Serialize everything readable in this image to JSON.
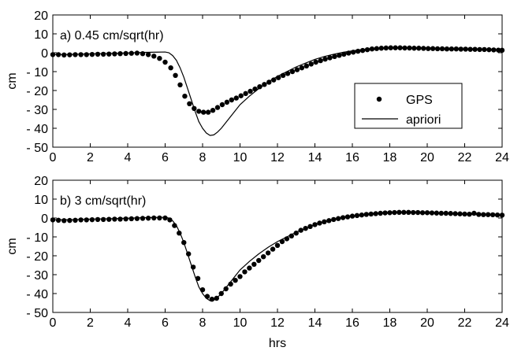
{
  "chart_data": [
    {
      "type": "scatter",
      "title": "a) 0.45 cm/sqrt(hr)",
      "xlabel": "",
      "ylabel": "cm",
      "xlim": [
        0,
        24
      ],
      "ylim": [
        -50,
        20
      ],
      "xticks": [
        0,
        2,
        4,
        6,
        8,
        10,
        12,
        14,
        16,
        18,
        20,
        22,
        24
      ],
      "yticks": [
        20,
        10,
        0,
        -10,
        -20,
        -30,
        -40,
        -50
      ],
      "ytick_labels": [
        "20",
        "10",
        "0",
        "- 10",
        "- 20",
        "- 30",
        "- 40",
        "- 50"
      ],
      "grid": false,
      "legend": {
        "position": "right",
        "entries": [
          "GPS",
          "apriori"
        ]
      },
      "series": [
        {
          "name": "GPS",
          "style": "markers",
          "x": [
            0,
            0.3,
            0.6,
            0.9,
            1.2,
            1.5,
            1.8,
            2.1,
            2.4,
            2.7,
            3.0,
            3.3,
            3.6,
            3.9,
            4.2,
            4.5,
            4.8,
            5.1,
            5.4,
            5.7,
            6.0,
            6.3,
            6.55,
            6.8,
            7.05,
            7.3,
            7.55,
            7.8,
            8.05,
            8.3,
            8.55,
            8.8,
            9.05,
            9.3,
            9.55,
            9.8,
            10.05,
            10.3,
            10.55,
            10.8,
            11.05,
            11.3,
            11.55,
            11.8,
            12.05,
            12.3,
            12.55,
            12.8,
            13.05,
            13.3,
            13.55,
            13.8,
            14.05,
            14.3,
            14.55,
            14.8,
            15.05,
            15.3,
            15.55,
            15.8,
            16.05,
            16.3,
            16.55,
            16.8,
            17.05,
            17.3,
            17.55,
            17.8,
            18.05,
            18.3,
            18.55,
            18.8,
            19.05,
            19.3,
            19.55,
            19.8,
            20.05,
            20.3,
            20.55,
            20.8,
            21.05,
            21.3,
            21.55,
            21.8,
            22.05,
            22.3,
            22.55,
            22.8,
            23.05,
            23.3,
            23.55,
            23.8,
            24.0
          ],
          "y": [
            -1,
            -1,
            -1.2,
            -1.1,
            -1,
            -1,
            -1,
            -0.9,
            -0.8,
            -0.8,
            -0.7,
            -0.6,
            -0.5,
            -0.4,
            -0.3,
            -0.2,
            -0.5,
            -1,
            -1.8,
            -3,
            -5,
            -8,
            -12,
            -17,
            -23,
            -27,
            -29.5,
            -31,
            -31.5,
            -31.5,
            -30.5,
            -29,
            -27.5,
            -26.2,
            -25,
            -24,
            -22.8,
            -21.6,
            -20.4,
            -19.2,
            -18,
            -16.8,
            -15.6,
            -14.4,
            -13.2,
            -12,
            -11,
            -10,
            -9,
            -8,
            -7,
            -6,
            -5,
            -4.2,
            -3.4,
            -2.7,
            -2,
            -1.4,
            -0.8,
            -0.2,
            0.3,
            0.8,
            1.2,
            1.6,
            2,
            2.2,
            2.4,
            2.5,
            2.6,
            2.6,
            2.6,
            2.5,
            2.5,
            2.4,
            2.4,
            2.3,
            2.2,
            2.2,
            2.1,
            2.1,
            2,
            2,
            2,
            1.9,
            1.9,
            1.8,
            1.8,
            1.7,
            1.7,
            1.6,
            1.5,
            1.4,
            1.3
          ]
        },
        {
          "name": "apriori",
          "style": "line",
          "x": [
            0,
            1,
            2,
            3,
            4,
            5,
            5.6,
            6.0,
            6.2,
            6.4,
            6.6,
            6.8,
            7.0,
            7.2,
            7.4,
            7.6,
            7.8,
            8.0,
            8.2,
            8.4,
            8.6,
            8.8,
            9.0,
            9.2,
            9.4,
            9.6,
            9.8,
            10.0,
            10.5,
            11,
            11.5,
            12,
            12.5,
            13,
            13.5,
            14,
            14.5,
            15,
            15.5,
            16,
            16.5,
            17,
            17.5,
            18,
            18.5,
            19,
            20,
            21,
            22,
            23,
            24
          ],
          "y": [
            -1,
            -0.9,
            -0.6,
            -0.4,
            -0.1,
            0.2,
            0.3,
            0.4,
            0,
            -1.5,
            -4,
            -8,
            -13,
            -19,
            -25,
            -31,
            -36.5,
            -40,
            -42.5,
            -43.8,
            -43.5,
            -42,
            -40,
            -37.5,
            -35,
            -32.5,
            -30,
            -27.5,
            -23,
            -19,
            -15.5,
            -12.5,
            -10,
            -7.5,
            -5.5,
            -3.5,
            -2,
            -0.8,
            0.2,
            1,
            1.7,
            2.2,
            2.5,
            2.7,
            2.8,
            2.8,
            2.6,
            2.3,
            2.0,
            1.7,
            1.4
          ]
        }
      ]
    },
    {
      "type": "scatter",
      "title": "b) 3 cm/sqrt(hr)",
      "xlabel": "hrs",
      "ylabel": "cm",
      "xlim": [
        0,
        24
      ],
      "ylim": [
        -50,
        20
      ],
      "xticks": [
        0,
        2,
        4,
        6,
        8,
        10,
        12,
        14,
        16,
        18,
        20,
        22,
        24
      ],
      "yticks": [
        20,
        10,
        0,
        -10,
        -20,
        -30,
        -40,
        -50
      ],
      "ytick_labels": [
        "20",
        "10",
        "0",
        "- 10",
        "- 20",
        "- 30",
        "- 40",
        "- 50"
      ],
      "grid": false,
      "series": [
        {
          "name": "GPS",
          "style": "markers",
          "x": [
            0,
            0.3,
            0.6,
            0.9,
            1.2,
            1.5,
            1.8,
            2.1,
            2.4,
            2.7,
            3.0,
            3.3,
            3.6,
            3.9,
            4.2,
            4.5,
            4.8,
            5.1,
            5.4,
            5.7,
            6.0,
            6.25,
            6.5,
            6.75,
            7.0,
            7.25,
            7.5,
            7.75,
            8.0,
            8.25,
            8.5,
            8.75,
            9.0,
            9.25,
            9.5,
            9.75,
            10.0,
            10.25,
            10.5,
            10.75,
            11.0,
            11.25,
            11.5,
            11.75,
            12.0,
            12.25,
            12.5,
            12.75,
            13.0,
            13.25,
            13.5,
            13.75,
            14.0,
            14.25,
            14.5,
            14.75,
            15.0,
            15.25,
            15.5,
            15.75,
            16.0,
            16.25,
            16.5,
            16.75,
            17.0,
            17.25,
            17.5,
            17.75,
            18.0,
            18.25,
            18.5,
            18.75,
            19.0,
            19.25,
            19.5,
            19.75,
            20.0,
            20.25,
            20.5,
            20.75,
            21.0,
            21.25,
            21.5,
            21.75,
            22.0,
            22.25,
            22.5,
            22.75,
            23.0,
            23.25,
            23.5,
            23.75,
            24.0
          ],
          "y": [
            -1,
            -1.2,
            -1.4,
            -1.3,
            -1.2,
            -1,
            -1,
            -0.9,
            -0.8,
            -0.8,
            -0.7,
            -0.6,
            -0.6,
            -0.5,
            -0.4,
            -0.3,
            -0.2,
            -0.1,
            0,
            0,
            0,
            -1,
            -4,
            -8,
            -13,
            -19,
            -26,
            -32,
            -38,
            -41.5,
            -43,
            -42.5,
            -40,
            -37.5,
            -35,
            -33,
            -31,
            -28.5,
            -26.5,
            -24.5,
            -22.5,
            -20.5,
            -18.5,
            -16.5,
            -14.5,
            -12.5,
            -11,
            -9.5,
            -8,
            -6.5,
            -5.5,
            -4.5,
            -3.5,
            -2.7,
            -2,
            -1.4,
            -0.8,
            -0.3,
            0.2,
            0.6,
            1,
            1.3,
            1.6,
            1.9,
            2.1,
            2.3,
            2.5,
            2.7,
            2.8,
            2.9,
            3,
            3,
            3,
            2.9,
            2.9,
            2.8,
            2.8,
            2.7,
            2.6,
            2.5,
            2.5,
            2.4,
            2.3,
            2.2,
            2.1,
            2.0,
            2.5,
            1.9,
            1.8,
            1.8,
            1.7,
            1.6,
            1.5
          ]
        },
        {
          "name": "apriori",
          "style": "line",
          "x": [
            0,
            1,
            2,
            3,
            4,
            5,
            5.6,
            6.0,
            6.2,
            6.4,
            6.6,
            6.8,
            7.0,
            7.2,
            7.4,
            7.6,
            7.8,
            8.0,
            8.2,
            8.4,
            8.6,
            8.8,
            9.0,
            9.2,
            9.4,
            9.6,
            9.8,
            10.0,
            10.5,
            11,
            11.5,
            12,
            12.5,
            13,
            13.5,
            14,
            14.5,
            15,
            15.5,
            16,
            16.5,
            17,
            17.5,
            18,
            18.5,
            19,
            20,
            21,
            22,
            23,
            24
          ],
          "y": [
            -1,
            -0.9,
            -0.6,
            -0.4,
            -0.1,
            0.2,
            0.3,
            0.4,
            0,
            -1.5,
            -4,
            -8,
            -13,
            -19,
            -25,
            -31,
            -36.5,
            -40,
            -42.5,
            -43.8,
            -43.5,
            -42,
            -40,
            -37.5,
            -35,
            -32.5,
            -30,
            -27.5,
            -23,
            -19,
            -15.5,
            -12.5,
            -10,
            -7.5,
            -5.5,
            -3.5,
            -2,
            -0.8,
            0.2,
            1,
            1.7,
            2.2,
            2.5,
            2.7,
            2.8,
            2.8,
            2.6,
            2.3,
            2.0,
            1.7,
            1.4
          ]
        }
      ]
    }
  ]
}
